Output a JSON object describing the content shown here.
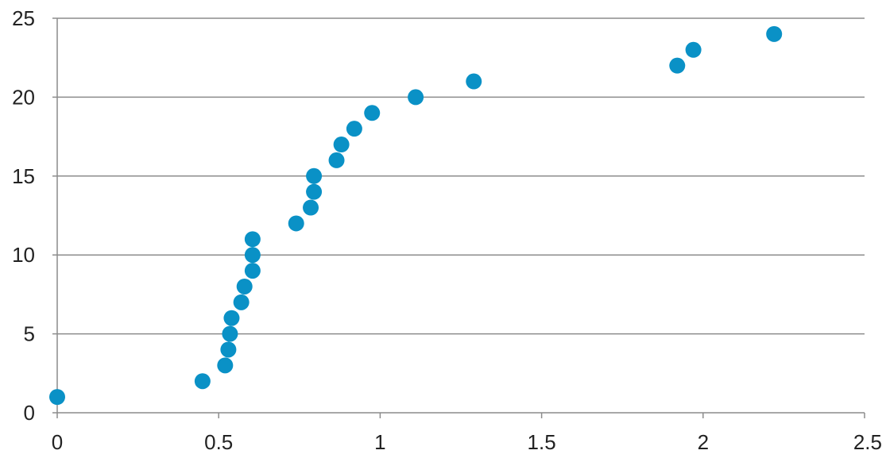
{
  "chart_data": {
    "type": "scatter",
    "title": "",
    "xlabel": "",
    "ylabel": "",
    "xlim": [
      0,
      2.5
    ],
    "ylim": [
      0,
      25
    ],
    "x_ticks": [
      0,
      0.5,
      1,
      1.5,
      2,
      2.5
    ],
    "y_ticks": [
      0,
      5,
      10,
      15,
      20,
      25
    ],
    "x_tick_labels": [
      "0",
      "0.5",
      "1",
      "1.5",
      "2",
      "2.5"
    ],
    "y_tick_labels": [
      "0",
      "5",
      "10",
      "15",
      "20",
      "25"
    ],
    "grid": "horizontal",
    "legend": "none",
    "marker_color": "#0a91c6",
    "grid_color": "#8c8c8c",
    "series": [
      {
        "points": [
          {
            "x": 0.0,
            "y": 1
          },
          {
            "x": 0.45,
            "y": 2
          },
          {
            "x": 0.52,
            "y": 3
          },
          {
            "x": 0.53,
            "y": 4
          },
          {
            "x": 0.535,
            "y": 5
          },
          {
            "x": 0.54,
            "y": 6
          },
          {
            "x": 0.57,
            "y": 7
          },
          {
            "x": 0.58,
            "y": 8
          },
          {
            "x": 0.605,
            "y": 9
          },
          {
            "x": 0.605,
            "y": 10
          },
          {
            "x": 0.605,
            "y": 11
          },
          {
            "x": 0.74,
            "y": 12
          },
          {
            "x": 0.785,
            "y": 13
          },
          {
            "x": 0.795,
            "y": 14
          },
          {
            "x": 0.795,
            "y": 15
          },
          {
            "x": 0.865,
            "y": 16
          },
          {
            "x": 0.88,
            "y": 17
          },
          {
            "x": 0.92,
            "y": 18
          },
          {
            "x": 0.975,
            "y": 19
          },
          {
            "x": 1.11,
            "y": 20
          },
          {
            "x": 1.29,
            "y": 21
          },
          {
            "x": 1.92,
            "y": 22
          },
          {
            "x": 1.97,
            "y": 23
          },
          {
            "x": 2.22,
            "y": 24
          }
        ]
      }
    ]
  }
}
